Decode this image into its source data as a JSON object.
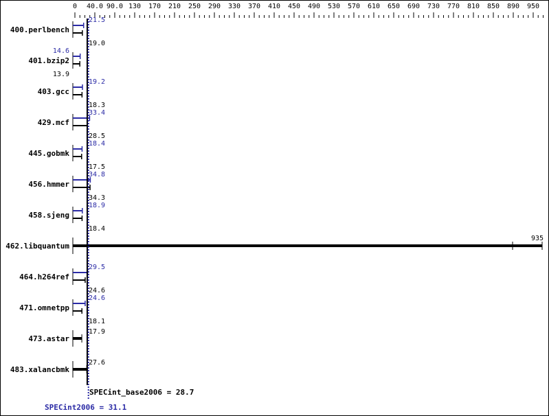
{
  "chart_data": {
    "type": "bar",
    "orientation": "horizontal",
    "xlim": [
      0,
      950
    ],
    "tick_labels": [
      "0",
      "40.0",
      "90.0",
      "130",
      "170",
      "210",
      "250",
      "290",
      "330",
      "370",
      "410",
      "450",
      "490",
      "530",
      "570",
      "610",
      "650",
      "690",
      "730",
      "770",
      "810",
      "850",
      "890",
      "950"
    ],
    "categories": [
      "400.perlbench",
      "401.bzip2",
      "403.gcc",
      "429.mcf",
      "445.gobmk",
      "456.hmmer",
      "458.sjeng",
      "462.libquantum",
      "464.h264ref",
      "471.omnetpp",
      "473.astar",
      "483.xalancbmk"
    ],
    "series": [
      {
        "name": "SPECint_base2006",
        "color": "#000000",
        "values": [
          19.0,
          13.9,
          18.3,
          28.5,
          17.5,
          34.3,
          18.4,
          935,
          24.6,
          18.1,
          17.9,
          27.6
        ]
      },
      {
        "name": "SPECint2006",
        "color": "#2a2aa5",
        "values": [
          21.5,
          14.6,
          19.2,
          33.4,
          18.4,
          34.8,
          18.9,
          null,
          29.5,
          24.6,
          null,
          null
        ]
      }
    ],
    "value_labels": {
      "base": [
        "19.0",
        "13.9",
        "18.3",
        "28.5",
        "17.5",
        "34.3",
        "18.4",
        "935",
        "24.6",
        "18.1",
        "17.9",
        "27.6"
      ],
      "peak": [
        "21.5",
        "14.6",
        "19.2",
        "33.4",
        "18.4",
        "34.8",
        "18.9",
        "",
        "29.5",
        "24.6",
        "",
        ""
      ]
    },
    "summary": {
      "base_label": "SPECint_base2006 = 28.7",
      "base_value": 28.7,
      "peak_label": "SPECint2006 = 31.1",
      "peak_value": 31.1
    }
  }
}
